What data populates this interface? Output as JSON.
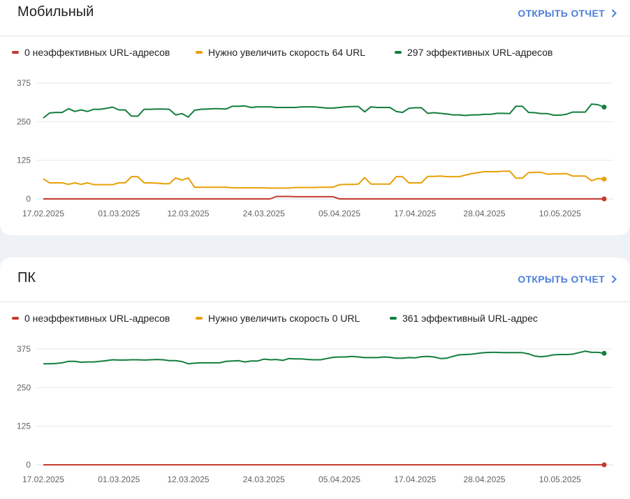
{
  "colors": {
    "red": "#c5392f",
    "orange": "#e8a008",
    "green": "#137e3e",
    "link": "#4d7fdb"
  },
  "open_report_label": "ОТКРЫТЬ ОТЧЕТ",
  "mobile": {
    "title": "Мобильный",
    "legend": [
      {
        "label": "0 неэффективных URL-адресов",
        "color": "red"
      },
      {
        "label": "Нужно увеличить скорость 64 URL",
        "color": "orange"
      },
      {
        "label": "297 эффективных URL-адресов",
        "color": "green"
      }
    ]
  },
  "pc": {
    "title": "ПК",
    "legend": [
      {
        "label": "0 неэффективных URL-адресов",
        "color": "red"
      },
      {
        "label": "Нужно увеличить скорость 0 URL",
        "color": "orange"
      },
      {
        "label": "361 эффективный URL-адрес",
        "color": "green"
      }
    ]
  },
  "chart_data": [
    {
      "type": "line",
      "title": "Мобильный",
      "y_ticks": [
        "0",
        "125",
        "250",
        "375"
      ],
      "ylim": [
        0,
        375
      ],
      "x_tick_labels": [
        "17.02.2025",
        "01.03.2025",
        "12.03.2025",
        "24.03.2025",
        "05.04.2025",
        "17.04.2025",
        "28.04.2025",
        "10.05.2025"
      ],
      "x_tick_indices": [
        0,
        12,
        23,
        35,
        47,
        59,
        70,
        82
      ],
      "x_count": 90,
      "grid": true,
      "series": [
        {
          "name": "0 неэффективных URL-адресов",
          "color": "red",
          "values": [
            0,
            0,
            0,
            0,
            0,
            0,
            0,
            0,
            0,
            0,
            0,
            0,
            0,
            0,
            0,
            0,
            0,
            0,
            0,
            0,
            0,
            0,
            0,
            0,
            0,
            0,
            0,
            0,
            0,
            0,
            0,
            0,
            0,
            0,
            0,
            0,
            0,
            8,
            8,
            8,
            7,
            7,
            7,
            7,
            7,
            7,
            7,
            0,
            0,
            0,
            0,
            0,
            0,
            0,
            0,
            0,
            0,
            0,
            0,
            0,
            0,
            0,
            0,
            0,
            0,
            0,
            0,
            0,
            0,
            0,
            0,
            0,
            0,
            0,
            0,
            0,
            0,
            0,
            0,
            0,
            0,
            0,
            0,
            0,
            0,
            0,
            0,
            0,
            0,
            0
          ]
        },
        {
          "name": "Нужно увеличить скорость 64 URL",
          "color": "orange",
          "values": [
            65,
            52,
            52,
            52,
            47,
            52,
            47,
            52,
            46,
            46,
            46,
            46,
            52,
            52,
            72,
            72,
            52,
            52,
            51,
            49,
            49,
            68,
            61,
            68,
            38,
            38,
            38,
            38,
            38,
            38,
            36,
            36,
            36,
            36,
            36,
            36,
            35,
            35,
            35,
            35,
            37,
            37,
            37,
            37,
            38,
            38,
            38,
            46,
            47,
            47,
            48,
            69,
            48,
            48,
            48,
            48,
            72,
            72,
            52,
            52,
            52,
            73,
            73,
            74,
            72,
            72,
            72,
            77,
            82,
            85,
            88,
            88,
            88,
            90,
            90,
            67,
            67,
            85,
            86,
            86,
            80,
            81,
            81,
            82,
            74,
            74,
            74,
            59,
            66,
            64
          ]
        },
        {
          "name": "297 эффективных URL-адресов",
          "color": "green",
          "values": [
            262,
            278,
            280,
            280,
            292,
            283,
            288,
            283,
            290,
            290,
            293,
            297,
            288,
            288,
            268,
            268,
            290,
            290,
            291,
            291,
            290,
            272,
            276,
            265,
            287,
            290,
            291,
            292,
            292,
            291,
            300,
            300,
            301,
            296,
            298,
            298,
            298,
            296,
            296,
            296,
            296,
            298,
            298,
            298,
            296,
            294,
            294,
            296,
            298,
            299,
            299,
            282,
            298,
            296,
            296,
            296,
            283,
            280,
            293,
            295,
            295,
            277,
            279,
            277,
            275,
            272,
            272,
            270,
            272,
            272,
            274,
            274,
            277,
            277,
            276,
            300,
            300,
            280,
            279,
            276,
            276,
            271,
            271,
            274,
            281,
            281,
            281,
            307,
            305,
            297
          ]
        }
      ]
    },
    {
      "type": "line",
      "title": "ПК",
      "y_ticks": [
        "0",
        "125",
        "250",
        "375"
      ],
      "ylim": [
        0,
        375
      ],
      "x_tick_labels": [
        "17.02.2025",
        "01.03.2025",
        "12.03.2025",
        "24.03.2025",
        "05.04.2025",
        "17.04.2025",
        "28.04.2025",
        "10.05.2025"
      ],
      "x_tick_indices": [
        0,
        12,
        23,
        35,
        47,
        59,
        70,
        82
      ],
      "x_count": 90,
      "grid": true,
      "series": [
        {
          "name": "0 неэффективных URL-адресов",
          "color": "red",
          "values": [
            0,
            0,
            0,
            0,
            0,
            0,
            0,
            0,
            0,
            0,
            0,
            0,
            0,
            0,
            0,
            0,
            0,
            0,
            0,
            0,
            0,
            0,
            0,
            0,
            0,
            0,
            0,
            0,
            0,
            0,
            0,
            0,
            0,
            0,
            0,
            0,
            0,
            0,
            0,
            0,
            0,
            0,
            0,
            0,
            0,
            0,
            0,
            0,
            0,
            0,
            0,
            0,
            0,
            0,
            0,
            0,
            0,
            0,
            0,
            0,
            0,
            0,
            0,
            0,
            0,
            0,
            0,
            0,
            0,
            0,
            0,
            0,
            0,
            0,
            0,
            0,
            0,
            0,
            0,
            0,
            0,
            0,
            0,
            0,
            0,
            0,
            0,
            0,
            0,
            0
          ]
        },
        {
          "name": "361 эффективный URL-адрес",
          "color": "green",
          "values": [
            327,
            327,
            328,
            330,
            335,
            335,
            332,
            333,
            333,
            335,
            337,
            340,
            339,
            339,
            340,
            340,
            339,
            340,
            341,
            340,
            337,
            337,
            334,
            327,
            329,
            330,
            330,
            330,
            330,
            335,
            336,
            337,
            333,
            336,
            336,
            342,
            340,
            341,
            338,
            344,
            343,
            343,
            341,
            340,
            340,
            344,
            348,
            349,
            349,
            351,
            349,
            347,
            347,
            347,
            349,
            348,
            345,
            345,
            347,
            346,
            350,
            351,
            349,
            344,
            345,
            351,
            356,
            357,
            358,
            361,
            363,
            364,
            364,
            363,
            363,
            363,
            363,
            359,
            352,
            350,
            352,
            356,
            357,
            357,
            358,
            363,
            368,
            364,
            364,
            361
          ]
        }
      ]
    }
  ]
}
